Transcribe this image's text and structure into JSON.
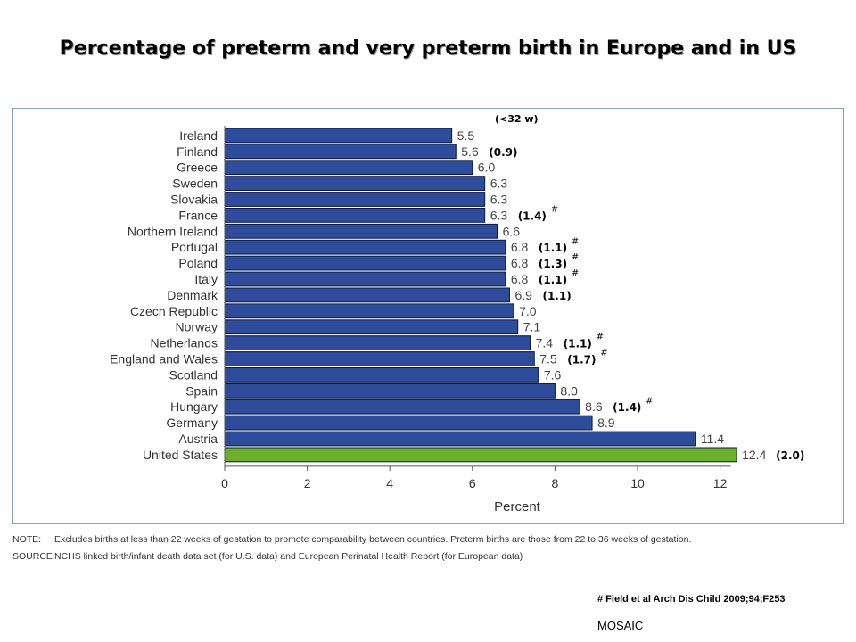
{
  "title": "Percentage of preterm and very preterm birth in Europe and in US",
  "note": {
    "label": "NOTE:",
    "text": "Excludes births at less than 22 weeks of gestation to promote comparability between countries. Preterm births are those from 22 to 36 weeks of gestation."
  },
  "source": {
    "label": "SOURCE:",
    "text": "NCHS linked birth/infant death data set (for U.S. data) and European Perinatal Health Report (for European data)"
  },
  "reference": "# Field et al Arch Dis Child 2009;94;F253",
  "footer_brand": "MOSAIC",
  "colors": {
    "europe_bar": "#2E4C9A",
    "us_bar": "#6BAF2C",
    "frame": "#8AA0B8"
  },
  "chart_data": {
    "type": "bar",
    "orientation": "horizontal",
    "xlabel": "Percent",
    "xlim": [
      0,
      12
    ],
    "xticks": [
      0,
      2,
      4,
      6,
      8,
      10,
      12
    ],
    "grid": false,
    "very_preterm_header": "(<32 w)",
    "categories": [
      "Ireland",
      "Finland",
      "Greece",
      "Sweden",
      "Slovakia",
      "France",
      "Northern Ireland",
      "Portugal",
      "Poland",
      "Italy",
      "Denmark",
      "Czech Republic",
      "Norway",
      "Netherlands",
      "England and Wales",
      "Scotland",
      "Spain",
      "Hungary",
      "Germany",
      "Austria",
      "United States"
    ],
    "values": [
      5.5,
      5.6,
      6.0,
      6.3,
      6.3,
      6.3,
      6.6,
      6.8,
      6.8,
      6.8,
      6.9,
      7.0,
      7.1,
      7.4,
      7.5,
      7.6,
      8.0,
      8.6,
      8.9,
      11.4,
      12.4
    ],
    "value_labels": [
      "5.5",
      "5.6",
      "6.0",
      "6.3",
      "6.3",
      "6.3",
      "6.6",
      "6.8",
      "6.8",
      "6.8",
      "6.9",
      "7.0",
      "7.1",
      "7.4",
      "7.5",
      "7.6",
      "8.0",
      "8.6",
      "8.9",
      "11.4",
      "12.4"
    ],
    "highlight": "United States",
    "very_preterm": [
      {
        "category": "Finland",
        "value": 0.9,
        "label": "(0.9)",
        "ref": false
      },
      {
        "category": "France",
        "value": 1.4,
        "label": "(1.4)",
        "ref": true
      },
      {
        "category": "Portugal",
        "value": 1.1,
        "label": "(1.1)",
        "ref": true
      },
      {
        "category": "Poland",
        "value": 1.3,
        "label": "(1.3)",
        "ref": true
      },
      {
        "category": "Italy",
        "value": 1.1,
        "label": "(1.1)",
        "ref": true
      },
      {
        "category": "Denmark",
        "value": 1.1,
        "label": "(1.1)",
        "ref": false
      },
      {
        "category": "Netherlands",
        "value": 1.1,
        "label": "(1.1)",
        "ref": true
      },
      {
        "category": "England and Wales",
        "value": 1.7,
        "label": "(1.7)",
        "ref": true
      },
      {
        "category": "Hungary",
        "value": 1.4,
        "label": "(1.4)",
        "ref": true
      },
      {
        "category": "United States",
        "value": 2.0,
        "label": "(2.0)",
        "ref": false
      }
    ],
    "ref_mark": "#"
  }
}
